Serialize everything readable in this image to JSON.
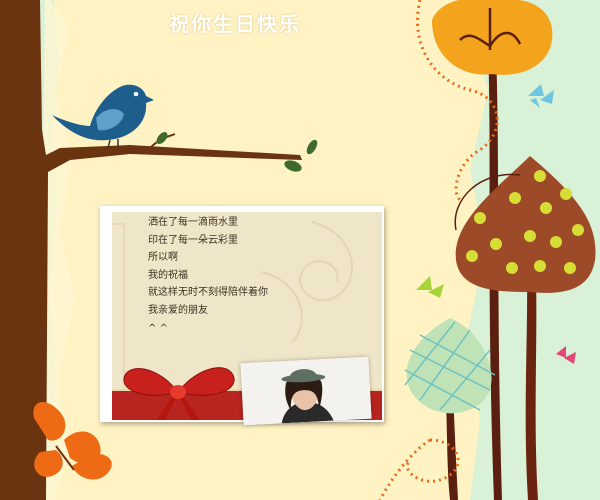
{
  "page": {
    "title": "祝你生日快乐"
  },
  "card": {
    "lines": [
      "洒在了每一滴雨水里",
      "印在了每一朵云彩里",
      "所以啊",
      "我的祝福",
      "就这样无时不刻得陪伴着你",
      "我亲爱的朋友",
      "^ ^"
    ]
  },
  "colors": {
    "background": "#fff3c4",
    "mint_band": "#d9f1d6",
    "trunk": "#6b3410",
    "bird": "#1d5e8c",
    "ribbon": "#c8201c",
    "orange_tree": "#f3a31c",
    "brown_tree": "#9c4a28",
    "dots": "#d6dd35",
    "orange_butterfly": "#ee6a15",
    "green_butterfly": "#a7d43a",
    "blue_butterfly": "#6ec7df",
    "pink_butterfly": "#e4467a"
  },
  "icons": [
    "bird-icon",
    "branch-icon",
    "tree-icon",
    "butterfly-icon",
    "ribbon-bow-icon",
    "portrait-photo"
  ]
}
